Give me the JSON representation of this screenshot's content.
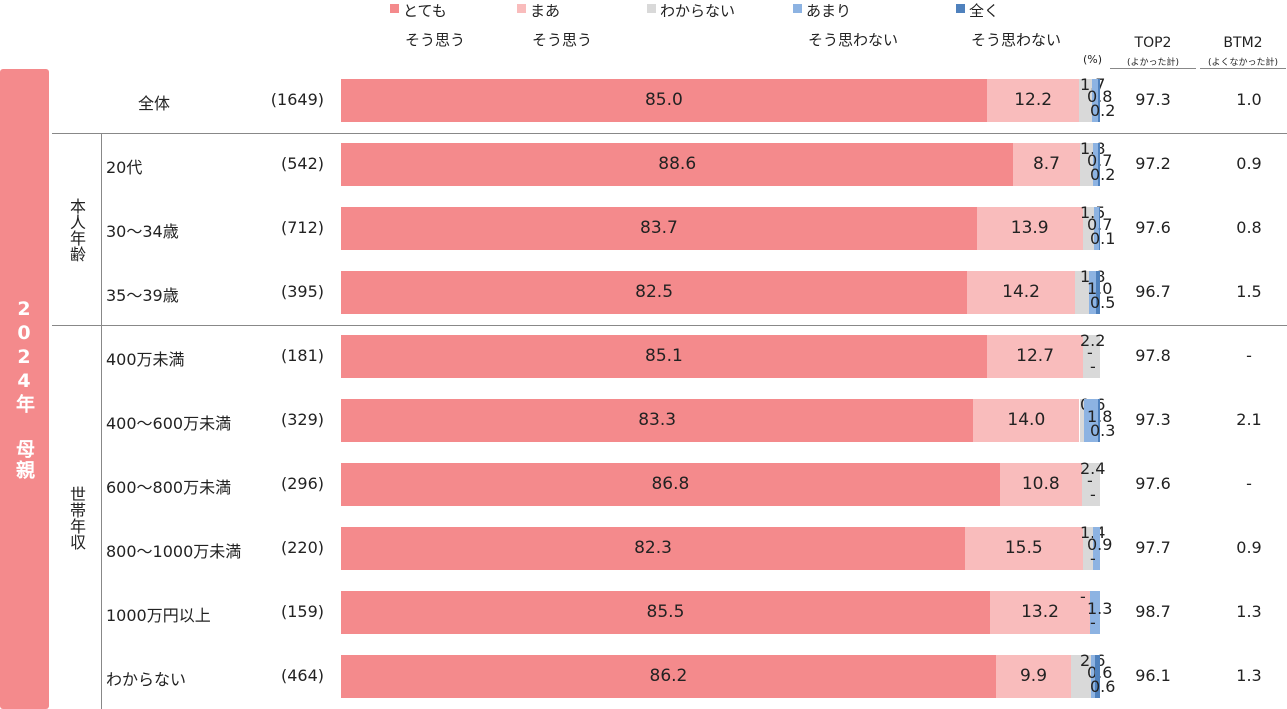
{
  "legend": [
    {
      "line1": "とても",
      "line2": "そう思う",
      "color": "#f48a8c"
    },
    {
      "line1": "まあ",
      "line2": "そう思う",
      "color": "#f9bcbc"
    },
    {
      "line1": "わからない",
      "line2": "",
      "color": "#d9d9d9"
    },
    {
      "line1": "あまり",
      "line2": "そう思わない",
      "color": "#8db3e2"
    },
    {
      "line1": "全く",
      "line2": "そう思わない",
      "color": "#4f81bd"
    }
  ],
  "unit": "(%)",
  "columns": {
    "top2": "TOP2",
    "top2_sub": "(よかった計)",
    "btm2": "BTM2",
    "btm2_sub": "(よくなかった計)"
  },
  "side_title": "2024年 母親",
  "groups": {
    "age": "本人年齢",
    "income": "世帯年収"
  },
  "chart_data": {
    "type": "bar",
    "orientation": "horizontal-stacked-100",
    "series": [
      {
        "name": "とても そう思う",
        "color": "#f48a8c"
      },
      {
        "name": "まあ そう思う",
        "color": "#f9bcbc"
      },
      {
        "name": "わからない",
        "color": "#d9d9d9"
      },
      {
        "name": "あまり そう思わない",
        "color": "#8db3e2"
      },
      {
        "name": "全く そう思わない",
        "color": "#4f81bd"
      }
    ],
    "rows": [
      {
        "label": "全体",
        "n": "(1649)",
        "values": [
          85.0,
          12.2,
          1.7,
          0.8,
          0.2
        ],
        "text": [
          "85.0",
          "12.2",
          "1.7",
          "0.8",
          "0.2"
        ],
        "top2": "97.3",
        "btm2": "1.0"
      },
      {
        "label": "20代",
        "n": "(542)",
        "values": [
          88.6,
          8.7,
          1.8,
          0.7,
          0.2
        ],
        "text": [
          "88.6",
          "8.7",
          "1.8",
          "0.7",
          "0.2"
        ],
        "top2": "97.2",
        "btm2": "0.9"
      },
      {
        "label": "30～34歳",
        "n": "(712)",
        "values": [
          83.7,
          13.9,
          1.5,
          0.7,
          0.1
        ],
        "text": [
          "83.7",
          "13.9",
          "1.5",
          "0.7",
          "0.1"
        ],
        "top2": "97.6",
        "btm2": "0.8"
      },
      {
        "label": "35～39歳",
        "n": "(395)",
        "values": [
          82.5,
          14.2,
          1.8,
          1.0,
          0.5
        ],
        "text": [
          "82.5",
          "14.2",
          "1.8",
          "1.0",
          "0.5"
        ],
        "top2": "96.7",
        "btm2": "1.5"
      },
      {
        "label": "400万未満",
        "n": "(181)",
        "values": [
          85.1,
          12.7,
          2.2,
          0,
          0
        ],
        "text": [
          "85.1",
          "12.7",
          "2.2",
          "-",
          "-"
        ],
        "top2": "97.8",
        "btm2": "-"
      },
      {
        "label": "400～600万未満",
        "n": "(329)",
        "values": [
          83.3,
          14.0,
          0.6,
          1.8,
          0.3
        ],
        "text": [
          "83.3",
          "14.0",
          "0.6",
          "1.8",
          "0.3"
        ],
        "top2": "97.3",
        "btm2": "2.1"
      },
      {
        "label": "600～800万未満",
        "n": "(296)",
        "values": [
          86.8,
          10.8,
          2.4,
          0,
          0
        ],
        "text": [
          "86.8",
          "10.8",
          "2.4",
          "-",
          "-"
        ],
        "top2": "97.6",
        "btm2": "-"
      },
      {
        "label": "800～1000万未満",
        "n": "(220)",
        "values": [
          82.3,
          15.5,
          1.4,
          0.9,
          0
        ],
        "text": [
          "82.3",
          "15.5",
          "1.4",
          "0.9",
          "-"
        ],
        "top2": "97.7",
        "btm2": "0.9"
      },
      {
        "label": "1000万円以上",
        "n": "(159)",
        "values": [
          85.5,
          13.2,
          0,
          1.3,
          0
        ],
        "text": [
          "85.5",
          "13.2",
          "-",
          "1.3",
          "-"
        ],
        "top2": "98.7",
        "btm2": "1.3"
      },
      {
        "label": "わからない",
        "n": "(464)",
        "values": [
          86.2,
          9.9,
          2.6,
          0.6,
          0.6
        ],
        "text": [
          "86.2",
          "9.9",
          "2.6",
          "0.6",
          "0.6"
        ],
        "top2": "96.1",
        "btm2": "1.3"
      }
    ]
  }
}
